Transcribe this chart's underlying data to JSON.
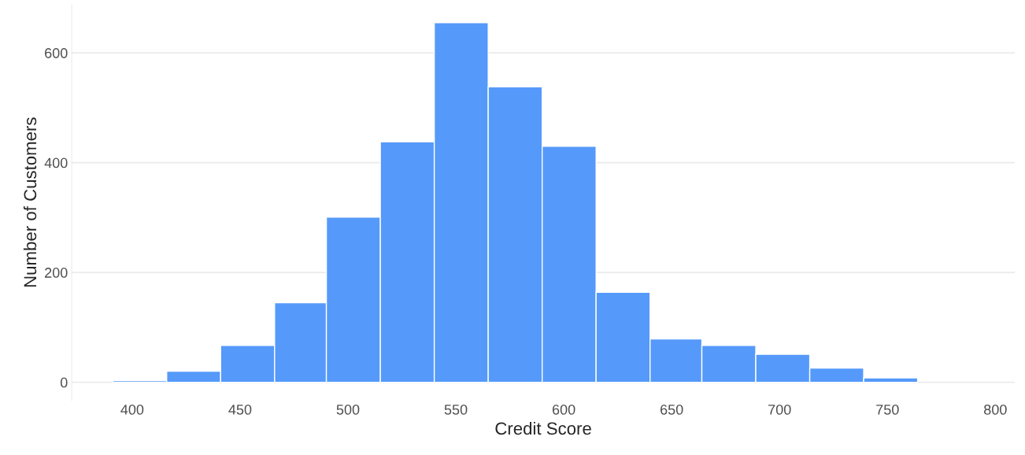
{
  "chart_data": {
    "type": "histogram",
    "xlabel": "Credit Score",
    "ylabel": "Number of Customers",
    "bins": [
      391,
      416,
      441,
      466,
      490,
      515,
      540,
      565,
      590,
      615,
      640,
      664,
      689,
      714,
      739,
      764
    ],
    "values": [
      3,
      20,
      67,
      145,
      301,
      438,
      655,
      538,
      430,
      164,
      79,
      67,
      51,
      26,
      8
    ],
    "color": "#5599fb",
    "xlim": [
      372,
      809
    ],
    "ylim": [
      -33,
      688
    ],
    "xticks": [
      400,
      450,
      500,
      550,
      600,
      650,
      700,
      750,
      800
    ],
    "yticks": [
      0,
      200,
      400,
      600
    ],
    "grid": "y"
  }
}
